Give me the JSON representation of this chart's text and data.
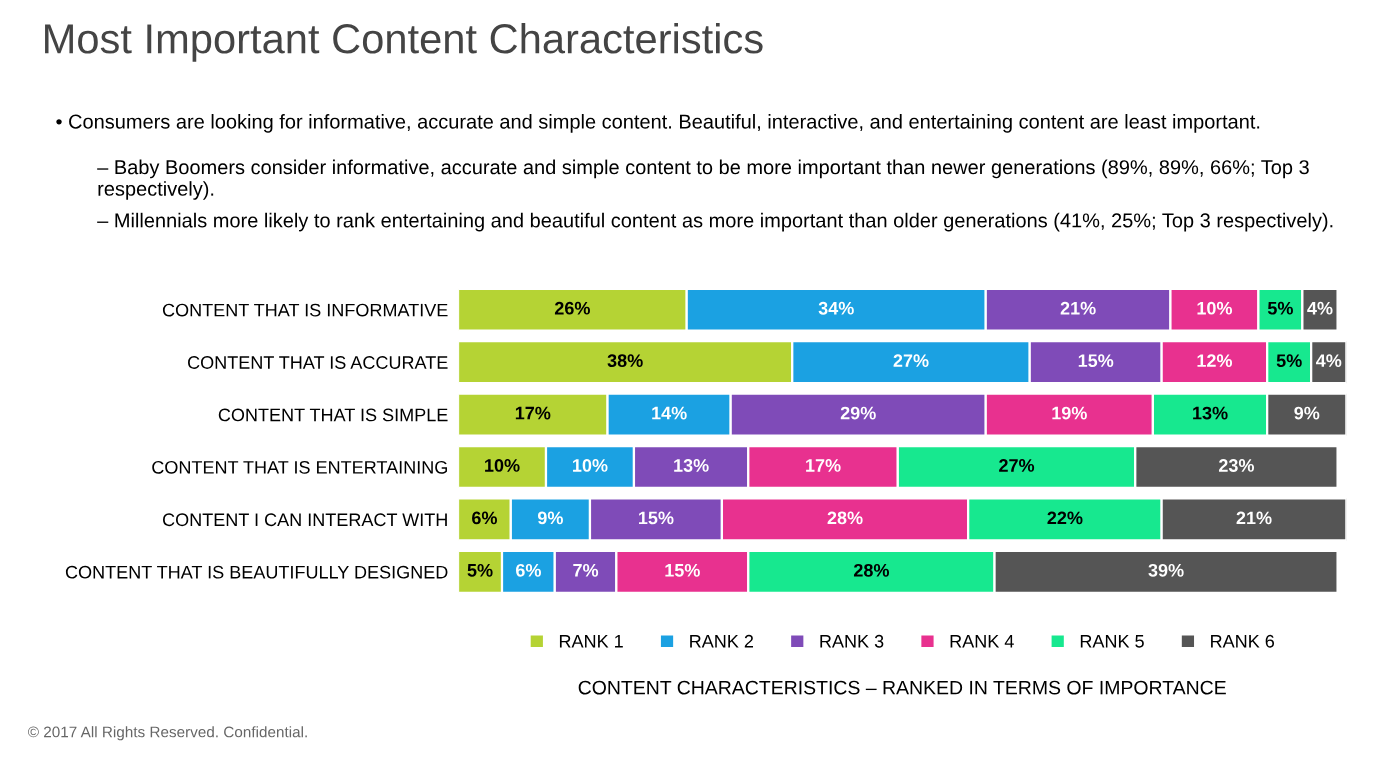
{
  "chart_data": {
    "type": "bar",
    "orientation": "horizontal",
    "stacked": true,
    "title": "Most Important Content Characteristics",
    "xlabel": "CONTENT CHARACTERISTICS – RANKED IN TERMS OF IMPORTANCE",
    "annotations": [
      "• Consumers are looking for informative, accurate and simple content. Beautiful, interactive, and entertaining content are least important.",
      "– Baby Boomers consider informative, accurate and simple content to be more important than newer generations (89%, 89%, 66%; Top 3 respectively).",
      "– Millennials more likely to rank entertaining and beautiful content as more important than older generations (41%, 25%; Top 3 respectively).",
      "© 2017 All Rights Reserved. Confidential."
    ],
    "categories": [
      "CONTENT THAT IS INFORMATIVE",
      "CONTENT THAT IS ACCURATE",
      "CONTENT THAT IS SIMPLE",
      "CONTENT THAT IS ENTERTAINING",
      "CONTENT I CAN INTERACT WITH",
      "CONTENT THAT IS BEAUTIFULLY DESIGNED"
    ],
    "series": [
      {
        "name": "RANK 1",
        "color": "#b5d334",
        "values": [
          26,
          38,
          17,
          10,
          6,
          5
        ],
        "value_labels": [
          "26%",
          "38%",
          "17%",
          "10%",
          "6%",
          "5%"
        ]
      },
      {
        "name": "RANK 2",
        "color": "#1ba1e2",
        "values": [
          34,
          27,
          14,
          10,
          9,
          6
        ],
        "value_labels": [
          "34%",
          "27%",
          "14%",
          "10%",
          "9%",
          "6%"
        ]
      },
      {
        "name": "RANK 3",
        "color": "#7f4bb8",
        "values": [
          21,
          15,
          29,
          13,
          15,
          7
        ],
        "value_labels": [
          "21%",
          "15%",
          "29%",
          "13%",
          "15%",
          "7%"
        ]
      },
      {
        "name": "RANK 4",
        "color": "#e8318f",
        "values": [
          10,
          12,
          19,
          17,
          28,
          15
        ],
        "value_labels": [
          "10%",
          "12%",
          "19%",
          "17%",
          "28%",
          "15%"
        ]
      },
      {
        "name": "RANK 5",
        "color": "#17e88f",
        "values": [
          5,
          5,
          13,
          27,
          22,
          28
        ],
        "value_labels": [
          "5%",
          "5%",
          "13%",
          "27%",
          "22%",
          "28%"
        ]
      },
      {
        "name": "RANK 6",
        "color": "#555555",
        "values": [
          4,
          4,
          9,
          23,
          21,
          39
        ],
        "value_labels": [
          "4%",
          "4%",
          "9%",
          "23%",
          "21%",
          "39%"
        ]
      }
    ],
    "legend": "bottom",
    "grid": false,
    "tick_labels": "y"
  }
}
